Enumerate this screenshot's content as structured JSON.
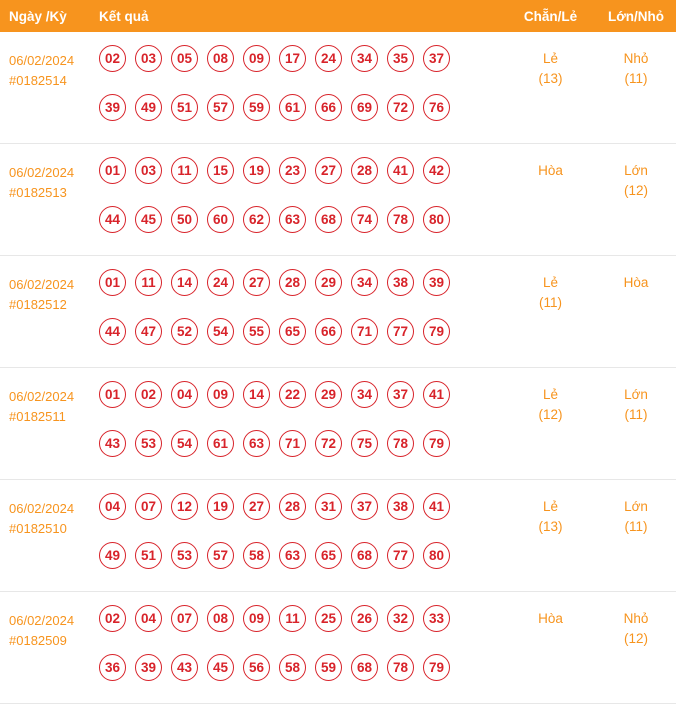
{
  "colors": {
    "accent": "#f7941e",
    "ball_red": "#d8232a",
    "divider": "#e7e7e7"
  },
  "header": {
    "col_date": "Ngày /Kỳ",
    "col_result": "Kết quả",
    "col_parity": "Chẵn/Lẻ",
    "col_size": "Lớn/Nhỏ"
  },
  "rows": [
    {
      "date": "06/02/2024",
      "draw": "#0182514",
      "line1": [
        "02",
        "03",
        "05",
        "08",
        "09",
        "17",
        "24",
        "34",
        "35",
        "37"
      ],
      "line2": [
        "39",
        "49",
        "51",
        "57",
        "59",
        "61",
        "66",
        "69",
        "72",
        "76"
      ],
      "parity": [
        "Lẻ",
        "(13)"
      ],
      "size": [
        "Nhỏ",
        "(11)"
      ]
    },
    {
      "date": "06/02/2024",
      "draw": "#0182513",
      "line1": [
        "01",
        "03",
        "11",
        "15",
        "19",
        "23",
        "27",
        "28",
        "41",
        "42"
      ],
      "line2": [
        "44",
        "45",
        "50",
        "60",
        "62",
        "63",
        "68",
        "74",
        "78",
        "80"
      ],
      "parity": [
        "Hòa"
      ],
      "size": [
        "Lớn",
        "(12)"
      ]
    },
    {
      "date": "06/02/2024",
      "draw": "#0182512",
      "line1": [
        "01",
        "11",
        "14",
        "24",
        "27",
        "28",
        "29",
        "34",
        "38",
        "39"
      ],
      "line2": [
        "44",
        "47",
        "52",
        "54",
        "55",
        "65",
        "66",
        "71",
        "77",
        "79"
      ],
      "parity": [
        "Lẻ",
        "(11)"
      ],
      "size": [
        "Hòa"
      ]
    },
    {
      "date": "06/02/2024",
      "draw": "#0182511",
      "line1": [
        "01",
        "02",
        "04",
        "09",
        "14",
        "22",
        "29",
        "34",
        "37",
        "41"
      ],
      "line2": [
        "43",
        "53",
        "54",
        "61",
        "63",
        "71",
        "72",
        "75",
        "78",
        "79"
      ],
      "parity": [
        "Lẻ",
        "(12)"
      ],
      "size": [
        "Lớn",
        "(11)"
      ]
    },
    {
      "date": "06/02/2024",
      "draw": "#0182510",
      "line1": [
        "04",
        "07",
        "12",
        "19",
        "27",
        "28",
        "31",
        "37",
        "38",
        "41"
      ],
      "line2": [
        "49",
        "51",
        "53",
        "57",
        "58",
        "63",
        "65",
        "68",
        "77",
        "80"
      ],
      "parity": [
        "Lẻ",
        "(13)"
      ],
      "size": [
        "Lớn",
        "(11)"
      ]
    },
    {
      "date": "06/02/2024",
      "draw": "#0182509",
      "line1": [
        "02",
        "04",
        "07",
        "08",
        "09",
        "11",
        "25",
        "26",
        "32",
        "33"
      ],
      "line2": [
        "36",
        "39",
        "43",
        "45",
        "56",
        "58",
        "59",
        "68",
        "78",
        "79"
      ],
      "parity": [
        "Hòa"
      ],
      "size": [
        "Nhỏ",
        "(12)"
      ]
    }
  ]
}
